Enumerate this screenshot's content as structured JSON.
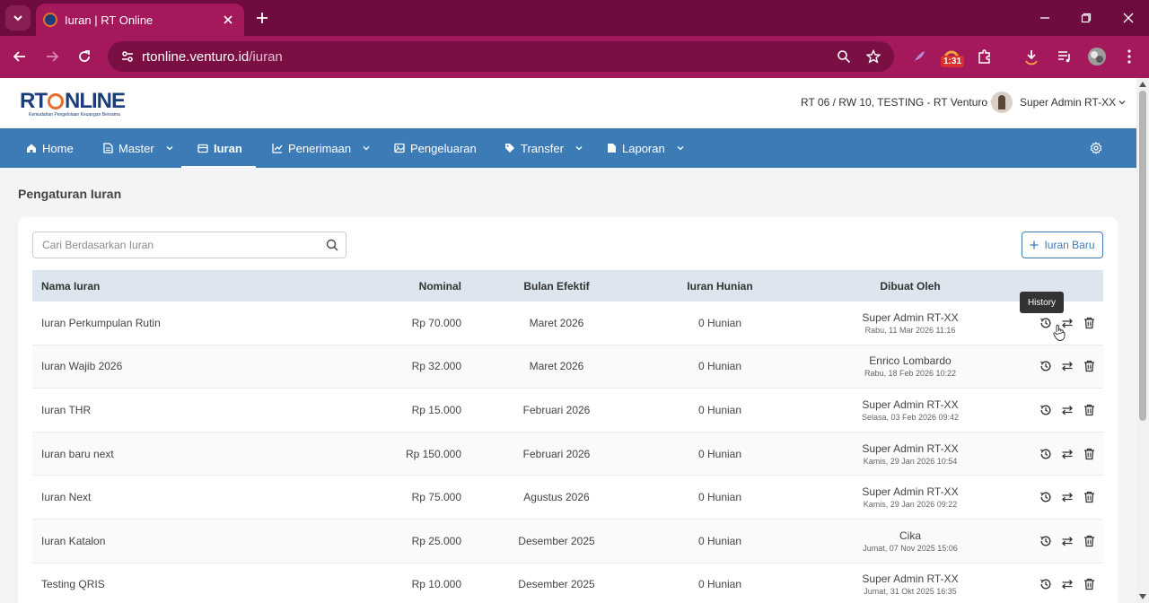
{
  "browser": {
    "tab_title": "Iuran | RT Online",
    "url_host": "rtonline.venturo.id",
    "url_path": "/iuran",
    "extension_badge": "1:31"
  },
  "header": {
    "logo_text_left": "RT",
    "logo_text_right": "NLINE",
    "logo_tagline": "Kemudahan Pengelolaan Keuangan Bersama",
    "rt_selector": "RT 06 / RW 10, TESTING - RT Venturo",
    "user_name": "Super Admin RT-XX"
  },
  "nav": {
    "items": [
      {
        "label": "Home",
        "icon": "home-icon",
        "dropdown": false
      },
      {
        "label": "Master",
        "icon": "document-icon",
        "dropdown": true
      },
      {
        "label": "Iuran",
        "icon": "wallet-icon",
        "dropdown": false,
        "active": true
      },
      {
        "label": "Penerimaan",
        "icon": "chart-icon",
        "dropdown": true
      },
      {
        "label": "Pengeluaran",
        "icon": "image-icon",
        "dropdown": false
      },
      {
        "label": "Transfer",
        "icon": "tag-icon",
        "dropdown": true
      },
      {
        "label": "Laporan",
        "icon": "file-icon",
        "dropdown": true
      }
    ]
  },
  "main": {
    "page_title": "Pengaturan Iuran",
    "search_placeholder": "Cari Berdasarkan Iuran",
    "add_button": "Iuran Baru",
    "tooltip": "History",
    "columns": [
      "Nama Iuran",
      "Nominal",
      "Bulan Efektif",
      "Iuran Hunian",
      "Dibuat Oleh"
    ],
    "rows": [
      {
        "name": "Iuran Perkumpulan Rutin",
        "nominal": "Rp 70.000",
        "bulan": "Maret 2026",
        "hunian": "0 Hunian",
        "by": "Super Admin RT-XX",
        "date": "Rabu, 11 Mar 2026 11:16"
      },
      {
        "name": "Iuran Wajib 2026",
        "nominal": "Rp 32.000",
        "bulan": "Maret 2026",
        "hunian": "0 Hunian",
        "by": "Enrico Lombardo",
        "date": "Rabu, 18 Feb 2026 10:22"
      },
      {
        "name": "Iuran THR",
        "nominal": "Rp 15.000",
        "bulan": "Februari 2026",
        "hunian": "0 Hunian",
        "by": "Super Admin RT-XX",
        "date": "Selasa, 03 Feb 2026 09:42"
      },
      {
        "name": "Iuran baru next",
        "nominal": "Rp 150.000",
        "bulan": "Februari 2026",
        "hunian": "0 Hunian",
        "by": "Super Admin RT-XX",
        "date": "Kamis, 29 Jan 2026 10:54"
      },
      {
        "name": "Iuran Next",
        "nominal": "Rp 75.000",
        "bulan": "Agustus 2026",
        "hunian": "0 Hunian",
        "by": "Super Admin RT-XX",
        "date": "Kamis, 29 Jan 2026 09:22"
      },
      {
        "name": "Iuran Katalon",
        "nominal": "Rp 25.000",
        "bulan": "Desember 2025",
        "hunian": "0 Hunian",
        "by": "Cika",
        "date": "Jumat, 07 Nov 2025 15:06"
      },
      {
        "name": "Testing QRIS",
        "nominal": "Rp 10.000",
        "bulan": "Desember 2025",
        "hunian": "0 Hunian",
        "by": "Super Admin RT-XX",
        "date": "Jumat, 31 Okt 2025 16:35"
      }
    ]
  }
}
